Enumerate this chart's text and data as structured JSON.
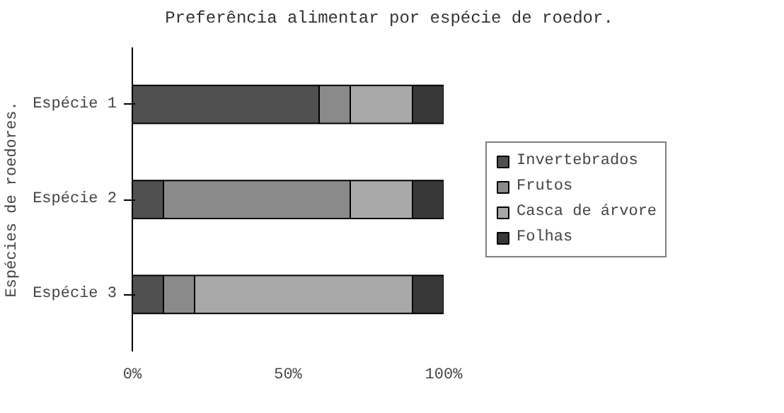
{
  "chart_data": {
    "type": "bar",
    "orientation": "horizontal",
    "stacked": true,
    "title": "Preferência alimentar por espécie de roedor.",
    "ylabel": "Espécies de roedores.",
    "categories": [
      "Espécie 1",
      "Espécie 2",
      "Espécie 3"
    ],
    "series": [
      {
        "name": "Invertebrados",
        "color": "#505050",
        "values": [
          0.6,
          0.1,
          0.1
        ]
      },
      {
        "name": "Frutos",
        "color": "#8a8a8a",
        "values": [
          0.1,
          0.6,
          0.1
        ]
      },
      {
        "name": "Casca de árvore",
        "color": "#a8a8a8",
        "values": [
          0.2,
          0.2,
          0.7
        ]
      },
      {
        "name": "Folhas",
        "color": "#383838",
        "values": [
          0.1,
          0.1,
          0.1
        ]
      }
    ],
    "xlim": [
      0,
      1
    ],
    "xticks": [
      {
        "value": 0,
        "label": "0%"
      },
      {
        "value": 0.5,
        "label": "50%"
      },
      {
        "value": 1,
        "label": "100%"
      }
    ],
    "grid": false,
    "legend": "right"
  }
}
